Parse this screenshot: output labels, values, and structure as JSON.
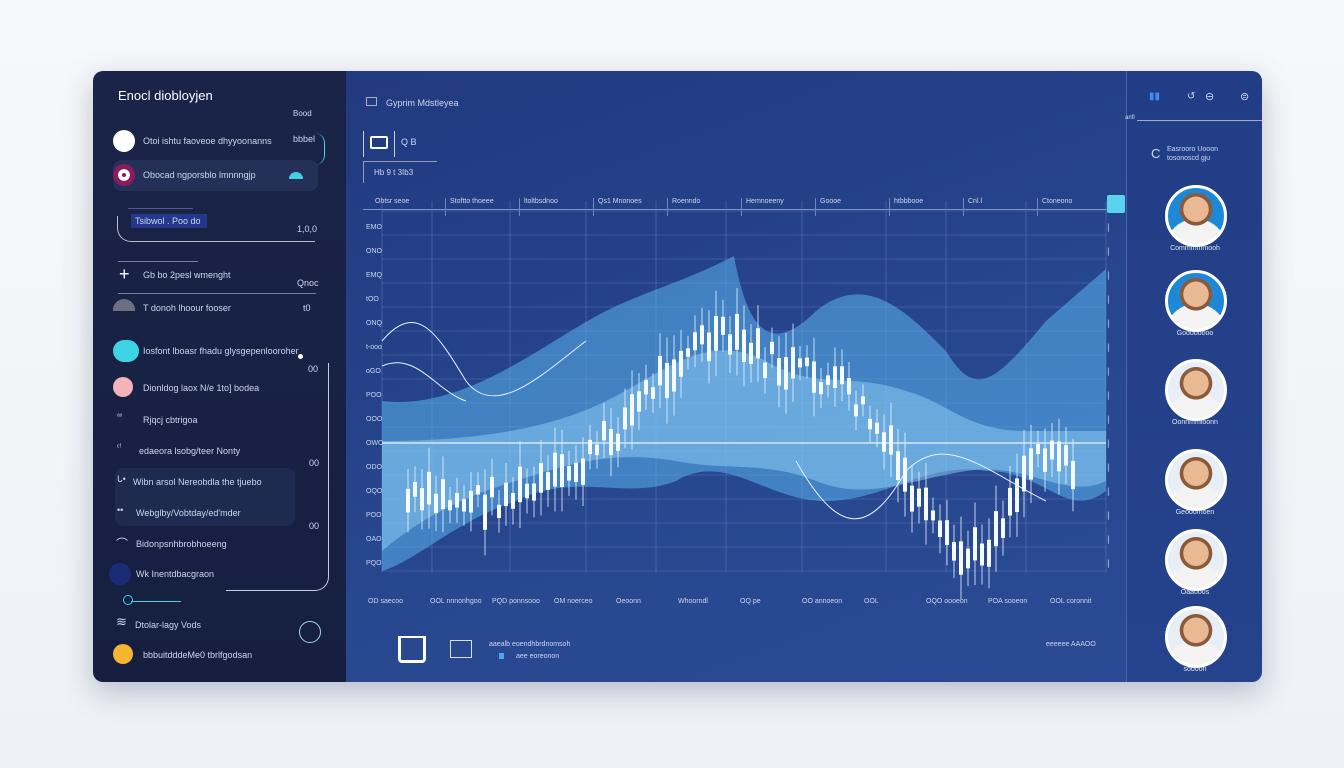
{
  "sidebar": {
    "title": "Enocl diobloyjen",
    "top_right": "Bood",
    "items": [
      {
        "label": "Otoi ishtu faoveoe dhyyoonanns",
        "value": "bbbel",
        "color": "#ffffff"
      },
      {
        "label": "Obocad ngporsblo lmnnngjp",
        "value": "",
        "color": "#8a1c5e"
      },
      {
        "label": "Tsibwol . Poo do",
        "value": "1,0,0",
        "color": "#3b4fa8"
      },
      {
        "label": "Gb bo 2pesl wmenght",
        "value": "Qnoc",
        "color": "#ffffff"
      },
      {
        "label": "T donoh lhoour fooser",
        "value": "t0",
        "color": "#6b6f80"
      },
      {
        "label": "Iosfont lboasr fhadu glysgepenlooroher",
        "value": "00",
        "color": "#3fd3e6"
      },
      {
        "label": "Dionldog laox N/e 1to] bodea",
        "value": "",
        "color": "#f2b4b8"
      },
      {
        "label": "Rjqcj cbtrigoa",
        "value": "",
        "color": ""
      },
      {
        "label": "edaeora lsobg/teer Nonty",
        "value": "00",
        "color": ""
      },
      {
        "label": "Wibn arsol Nereobdla  the tjuebo",
        "value": "",
        "color": ""
      },
      {
        "label": "Webglby/Vobtday/ed'mder",
        "value": "00",
        "color": ""
      },
      {
        "label": "Bidonpsnhbrobhoeeng",
        "value": "",
        "color": ""
      },
      {
        "label": "Wk Inentdbacgraon",
        "value": "",
        "color": ""
      },
      {
        "label": "Dtolar-lagy Vods",
        "value": "",
        "color": ""
      },
      {
        "label": "bbbuitdddeMe0 tbrlfgodsan",
        "value": "",
        "color": "#f5b531"
      }
    ]
  },
  "main": {
    "header_title": "Gyprim Mdstleyea",
    "view_label": "Q B",
    "range_label": "Hb  9 t  3Ib3",
    "columns": [
      "Obtsr seoe",
      "Stoftto thoeee",
      "ltoltbsdnoo",
      "Qs1 Mnonoes",
      "Roenndo",
      "Hemnoeeny",
      "Goooe",
      "htbbbooe",
      "Cnl.l",
      "Ctoneono"
    ],
    "y_labels": [
      "EMO",
      "ONO",
      "EMQ",
      "tOO",
      "ONQ",
      "t-ooo",
      "oGO",
      "POO",
      "OOO",
      "OWO",
      "ODO",
      "OQO",
      "POO",
      "OAO",
      "PQO"
    ],
    "x_labels": [
      "OD saecoo",
      "OOL nnnonhgoo",
      "PQD ponnsooo",
      "OM noerceo",
      "Oeoonn",
      "Whoorndl",
      "OQ pe",
      "OO annoeon",
      "OOL",
      "OQO oooeon",
      "POA sooeon",
      "OOL coronnit"
    ],
    "footer_text": "aaealb eoendhbrdnomsoh",
    "footer_sub": "aee eoreonon",
    "footer_right": "eeeeee AAAOO"
  },
  "right": {
    "top_label": "anfl",
    "title": "Easrooro Uooon  tosonoscd gju",
    "people": [
      {
        "name": "Commmmmooh",
        "ring": "#1e88d6"
      },
      {
        "name": "Goooboooo",
        "ring": "#1e88d6"
      },
      {
        "name": "Oonnmmioonn",
        "ring": "#ffffff"
      },
      {
        "name": "Geooomoen",
        "ring": "#ffffff"
      },
      {
        "name": "Oaaooos",
        "ring": "#ffffff"
      },
      {
        "name": "soooon",
        "ring": "#ffffff"
      }
    ]
  },
  "colors": {
    "sidebar_bg": "#1a2448",
    "main_bg": "#24418a",
    "accent": "#3fd3e6",
    "chart_fill": "#5ab2ee"
  }
}
